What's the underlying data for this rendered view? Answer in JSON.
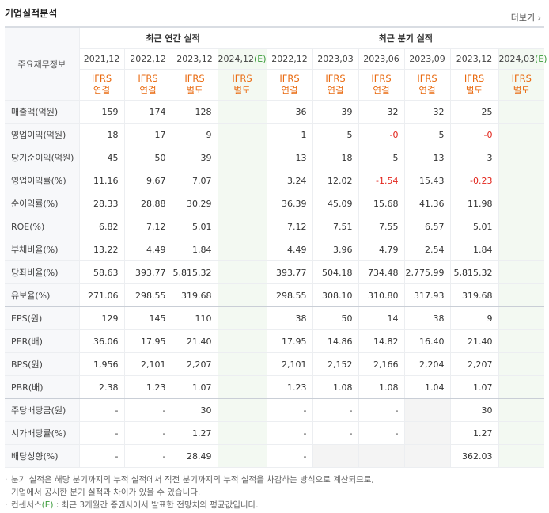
{
  "header": {
    "title": "기업실적분석",
    "more": "더보기"
  },
  "table": {
    "row_header": "주요재무정보",
    "groups": [
      "최근 연간 실적",
      "최근 분기 실적"
    ],
    "periods": [
      "2021,12",
      "2022,12",
      "2023,12",
      {
        "date": "2024,12",
        "estimate": "(E)"
      },
      "2022,12",
      "2023,03",
      "2023,06",
      "2023,09",
      "2023,12",
      {
        "date": "2024,03",
        "estimate": "(E)"
      }
    ],
    "standards": [
      [
        "IFRS",
        "연결"
      ],
      [
        "IFRS",
        "연결"
      ],
      [
        "IFRS",
        "별도"
      ],
      [
        "IFRS",
        "별도"
      ],
      [
        "IFRS",
        "연결"
      ],
      [
        "IFRS",
        "연결"
      ],
      [
        "IFRS",
        "연결"
      ],
      [
        "IFRS",
        "연결"
      ],
      [
        "IFRS",
        "별도"
      ],
      [
        "IFRS",
        "별도"
      ]
    ],
    "rows": [
      {
        "label": "매출액(억원)",
        "values": [
          "159",
          "174",
          "128",
          null,
          "36",
          "39",
          "32",
          "32",
          "25",
          null
        ]
      },
      {
        "label": "영업이익(억원)",
        "values": [
          "18",
          "17",
          "9",
          null,
          "1",
          "5",
          "-0",
          "5",
          "-0",
          null
        ]
      },
      {
        "label": "당기순이익(억원)",
        "values": [
          "45",
          "50",
          "39",
          null,
          "13",
          "18",
          "5",
          "13",
          "3",
          null
        ]
      },
      {
        "label": "영업이익률(%)",
        "values": [
          "11.16",
          "9.67",
          "7.07",
          null,
          "3.24",
          "12.02",
          "-1.54",
          "15.43",
          "-0.23",
          null
        ]
      },
      {
        "label": "순이익률(%)",
        "values": [
          "28.33",
          "28.88",
          "30.29",
          null,
          "36.39",
          "45.09",
          "15.68",
          "41.36",
          "11.98",
          null
        ]
      },
      {
        "label": "ROE(%)",
        "values": [
          "6.82",
          "7.12",
          "5.01",
          null,
          "7.12",
          "7.51",
          "7.55",
          "6.57",
          "5.01",
          null
        ]
      },
      {
        "label": "부채비율(%)",
        "values": [
          "13.22",
          "4.49",
          "1.84",
          null,
          "4.49",
          "3.96",
          "4.79",
          "2.54",
          "1.84",
          null
        ]
      },
      {
        "label": "당좌비율(%)",
        "values": [
          "58.63",
          "393.77",
          "5,815.32",
          null,
          "393.77",
          "504.18",
          "734.48",
          "2,775.99",
          "5,815.32",
          null
        ]
      },
      {
        "label": "유보율(%)",
        "values": [
          "271.06",
          "298.55",
          "319.68",
          null,
          "298.55",
          "308.10",
          "310.80",
          "317.93",
          "319.68",
          null
        ]
      },
      {
        "label": "EPS(원)",
        "values": [
          "129",
          "145",
          "110",
          null,
          "38",
          "50",
          "14",
          "38",
          "9",
          null
        ]
      },
      {
        "label": "PER(배)",
        "values": [
          "36.06",
          "17.95",
          "21.40",
          null,
          "17.95",
          "14.86",
          "14.82",
          "16.40",
          "21.40",
          null
        ]
      },
      {
        "label": "BPS(원)",
        "values": [
          "1,956",
          "2,101",
          "2,207",
          null,
          "2,101",
          "2,152",
          "2,166",
          "2,204",
          "2,207",
          null
        ]
      },
      {
        "label": "PBR(배)",
        "values": [
          "2.38",
          "1.23",
          "1.07",
          null,
          "1.23",
          "1.08",
          "1.08",
          "1.04",
          "1.07",
          null
        ]
      },
      {
        "label": "주당배당금(원)",
        "values": [
          "-",
          "-",
          "30",
          null,
          "-",
          "-",
          "-",
          null,
          "30",
          null
        ]
      },
      {
        "label": "시가배당률(%)",
        "values": [
          "-",
          "-",
          "1.27",
          null,
          "-",
          "-",
          "-",
          null,
          "1.27",
          null
        ]
      },
      {
        "label": "배당성향(%)",
        "values": [
          "-",
          "-",
          "28.49",
          null,
          "-",
          null,
          null,
          null,
          "362.03",
          null
        ]
      }
    ]
  },
  "notes": [
    {
      "lines": [
        "분기 실적은 해당 분기까지의 누적 실적에서 직전 분기까지의 누적 실적을 차감하는 방식으로 계산되므로,",
        "기업에서 공시한 분기 실적과 차이가 있을 수 있습니다."
      ]
    },
    {
      "lines": [
        "컨센서스",
        "(E)",
        " : 최근 3개월간 증권사에서 발표한 전망치의 평균값입니다."
      ]
    }
  ]
}
